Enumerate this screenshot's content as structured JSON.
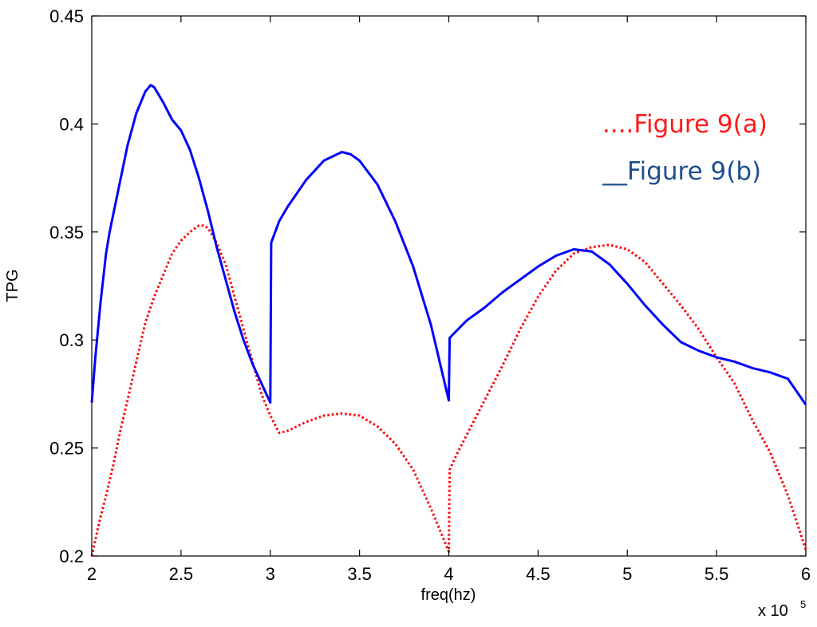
{
  "chart_data": {
    "type": "line",
    "title": "",
    "xlabel": "freq(hz)",
    "ylabel": "TPG",
    "x_multiplier": {
      "base": "x 10",
      "exponent": "5"
    },
    "xlim": [
      2,
      6
    ],
    "ylim": [
      0.2,
      0.45
    ],
    "xticks": [
      2,
      2.5,
      3,
      3.5,
      4,
      4.5,
      5,
      5.5,
      6
    ],
    "xtick_labels": [
      "2",
      "2.5",
      "3",
      "3.5",
      "4",
      "4.5",
      "5",
      "5.5",
      "6"
    ],
    "yticks": [
      0.2,
      0.25,
      0.3,
      0.35,
      0.4,
      0.45
    ],
    "ytick_labels": [
      "0.2",
      "0.25",
      "0.3",
      "0.35",
      "0.4",
      "0.45"
    ],
    "grid": false,
    "legend": {
      "placement": "top-right",
      "entries": [
        "....Figure 9(a)",
        "__Figure 9(b)"
      ]
    },
    "series": [
      {
        "name": "Figure 9(a)",
        "color": "#ff0000",
        "style": "dotted",
        "x": [
          2.0,
          2.04,
          2.08,
          2.12,
          2.16,
          2.2,
          2.25,
          2.3,
          2.35,
          2.4,
          2.45,
          2.5,
          2.55,
          2.6,
          2.62,
          2.65,
          2.7,
          2.75,
          2.8,
          2.85,
          2.9,
          2.95,
          3.0,
          3.05,
          3.1,
          3.2,
          3.3,
          3.4,
          3.5,
          3.6,
          3.7,
          3.8,
          3.9,
          4.0,
          4.005,
          4.05,
          4.1,
          4.2,
          4.3,
          4.4,
          4.5,
          4.6,
          4.7,
          4.8,
          4.9,
          5.0,
          5.1,
          5.2,
          5.3,
          5.4,
          5.5,
          5.6,
          5.7,
          5.8,
          5.9,
          6.0
        ],
        "y": [
          0.2,
          0.215,
          0.228,
          0.242,
          0.258,
          0.272,
          0.29,
          0.308,
          0.32,
          0.33,
          0.34,
          0.346,
          0.35,
          0.353,
          0.353,
          0.352,
          0.345,
          0.335,
          0.32,
          0.305,
          0.29,
          0.275,
          0.265,
          0.257,
          0.258,
          0.262,
          0.265,
          0.266,
          0.265,
          0.26,
          0.252,
          0.24,
          0.222,
          0.202,
          0.24,
          0.248,
          0.256,
          0.272,
          0.288,
          0.305,
          0.32,
          0.332,
          0.34,
          0.343,
          0.344,
          0.342,
          0.336,
          0.326,
          0.316,
          0.305,
          0.292,
          0.28,
          0.263,
          0.248,
          0.228,
          0.203
        ]
      },
      {
        "name": "Figure 9(b)",
        "color": "#0000ff",
        "style": "solid",
        "x": [
          2.0,
          2.02,
          2.05,
          2.08,
          2.1,
          2.15,
          2.2,
          2.25,
          2.3,
          2.33,
          2.35,
          2.4,
          2.45,
          2.5,
          2.55,
          2.6,
          2.65,
          2.7,
          2.75,
          2.8,
          2.85,
          2.9,
          2.95,
          3.0,
          3.005,
          3.05,
          3.1,
          3.15,
          3.2,
          3.3,
          3.4,
          3.45,
          3.5,
          3.6,
          3.7,
          3.8,
          3.9,
          4.0,
          4.005,
          4.1,
          4.2,
          4.3,
          4.4,
          4.5,
          4.6,
          4.7,
          4.8,
          4.9,
          5.0,
          5.1,
          5.2,
          5.3,
          5.4,
          5.5,
          5.6,
          5.7,
          5.8,
          5.9,
          6.0
        ],
        "y": [
          0.271,
          0.292,
          0.318,
          0.34,
          0.35,
          0.37,
          0.39,
          0.405,
          0.415,
          0.418,
          0.417,
          0.41,
          0.402,
          0.397,
          0.388,
          0.375,
          0.36,
          0.343,
          0.328,
          0.313,
          0.3,
          0.289,
          0.28,
          0.271,
          0.345,
          0.355,
          0.362,
          0.368,
          0.374,
          0.383,
          0.387,
          0.386,
          0.383,
          0.372,
          0.355,
          0.334,
          0.307,
          0.272,
          0.301,
          0.309,
          0.315,
          0.322,
          0.328,
          0.334,
          0.339,
          0.342,
          0.341,
          0.335,
          0.326,
          0.316,
          0.307,
          0.299,
          0.295,
          0.292,
          0.29,
          0.287,
          0.285,
          0.282,
          0.27
        ]
      }
    ]
  }
}
